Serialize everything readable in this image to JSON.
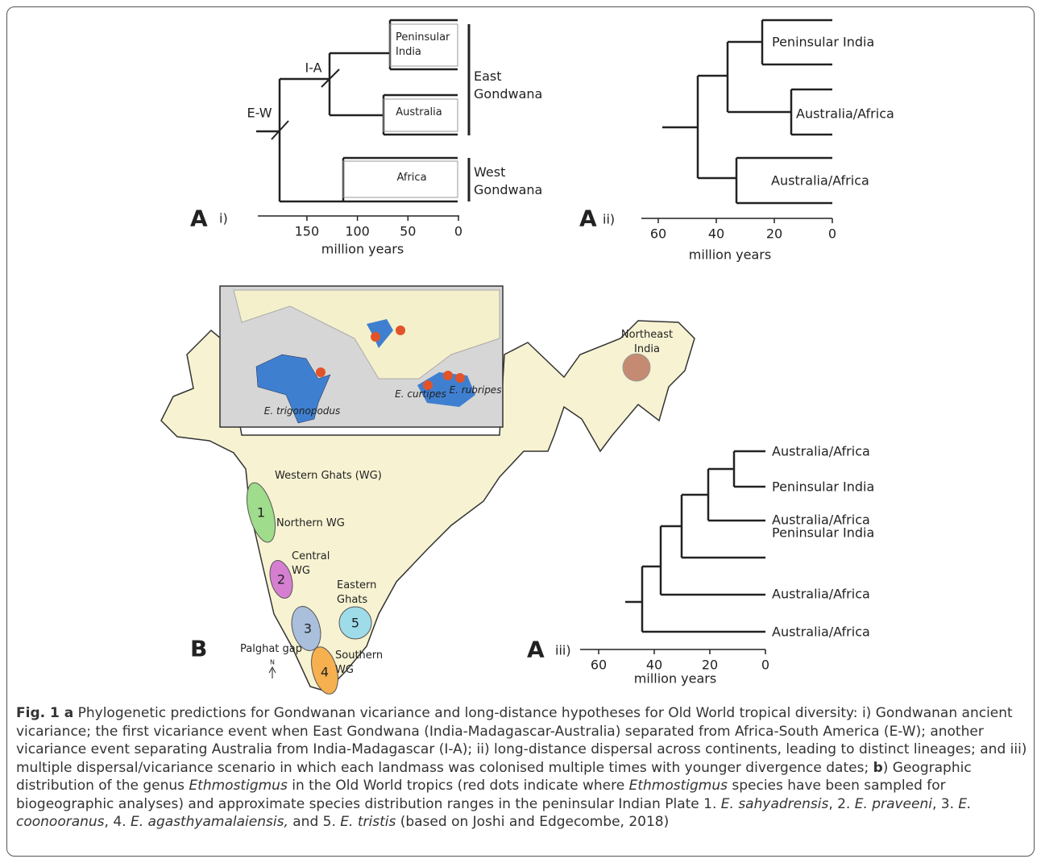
{
  "panel_a_i": {
    "label": "A",
    "sublabel": "i)",
    "events": [
      "E-W",
      "I-A"
    ],
    "clades": [
      "Peninsular India",
      "Australia",
      "Africa"
    ],
    "groups": [
      "East Gondwana",
      "West Gondwana"
    ],
    "axis": {
      "ticks": [
        150,
        100,
        50,
        0
      ],
      "label": "million years"
    }
  },
  "panel_a_ii": {
    "label": "A",
    "sublabel": "ii)",
    "clades": [
      "Peninsular India",
      "Australia/Africa",
      "Australia/Africa"
    ],
    "axis": {
      "ticks": [
        60,
        40,
        20,
        0
      ],
      "label": "million years"
    }
  },
  "panel_a_iii": {
    "label": "A",
    "sublabel": "iii)",
    "leaves": [
      "Australia/Africa",
      "Peninsular India",
      "Australia/Africa",
      "Peninsular India",
      "Australia/Africa",
      "Australia/Africa"
    ],
    "axis": {
      "ticks": [
        60,
        40,
        20,
        0
      ],
      "label": "million years"
    }
  },
  "panel_b": {
    "label": "B",
    "inset_species": [
      "E. trigonopodus",
      "E. curtipes",
      "E. rubripes"
    ],
    "regions": [
      "Northeast India",
      "Western Ghats (WG)",
      "Northern WG",
      "Central WG",
      "Eastern Ghats",
      "Palghat gap",
      "Southern WG"
    ],
    "ranges": [
      "1",
      "2",
      "3",
      "4",
      "5"
    ],
    "north": "N"
  },
  "caption": [
    "Fig. 1 a",
    " Phylogenetic predictions for Gondwanan vicariance and long-distance hypotheses for Old World tropical diversity: i) Gondwanan ancient vicariance; the first vicariance event when East Gondwana (India-Madagascar-Australia) separated from Africa-South America (E-W); another vicariance event separating Australia from India-Madagascar (I-A); ii) long-distance dispersal across continents, leading to distinct lineages; and iii) multiple dispersal/vicariance scenario in which each landmass was colonised multiple times with younger divergence dates; ",
    "b",
    ") Geographic distribution of the genus ",
    "Ethmostigmus",
    " in the Old World tropics (red dots indicate where ",
    "Ethmostigmus",
    " species have been sampled for biogeographic analyses) and approximate species distribution ranges in the peninsular Indian Plate 1. ",
    "E. sahyadrensis",
    ", 2. ",
    "E. praveeni",
    ", 3. ",
    "E. coonooranus",
    ", 4. ",
    "E. agasthyamalaiensis,",
    " and 5. ",
    "E. tristis",
    " (based on Joshi and Edgecombe, 2018)"
  ]
}
